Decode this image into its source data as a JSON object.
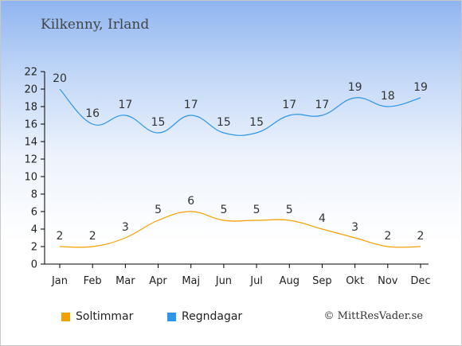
{
  "title": "Kilkenny, Irland",
  "credit": "© MittResVader.se",
  "chart_data": {
    "type": "line",
    "categories": [
      "Jan",
      "Feb",
      "Mar",
      "Apr",
      "Maj",
      "Jun",
      "Jul",
      "Aug",
      "Sep",
      "Okt",
      "Nov",
      "Dec"
    ],
    "ylim": [
      0,
      22
    ],
    "yticks": [
      0,
      2,
      4,
      6,
      8,
      10,
      12,
      14,
      16,
      18,
      20,
      22
    ],
    "grid": false,
    "legend_position": "bottom-left",
    "series": [
      {
        "name": "Soltimmar",
        "color": "#f5a000",
        "values": [
          2,
          2,
          3,
          5,
          6,
          5,
          5,
          5,
          4,
          3,
          2,
          2
        ]
      },
      {
        "name": "Regndagar",
        "color": "#2e96e8",
        "values": [
          20,
          16,
          17,
          15,
          17,
          15,
          15,
          17,
          17,
          19,
          18,
          19
        ]
      }
    ]
  }
}
